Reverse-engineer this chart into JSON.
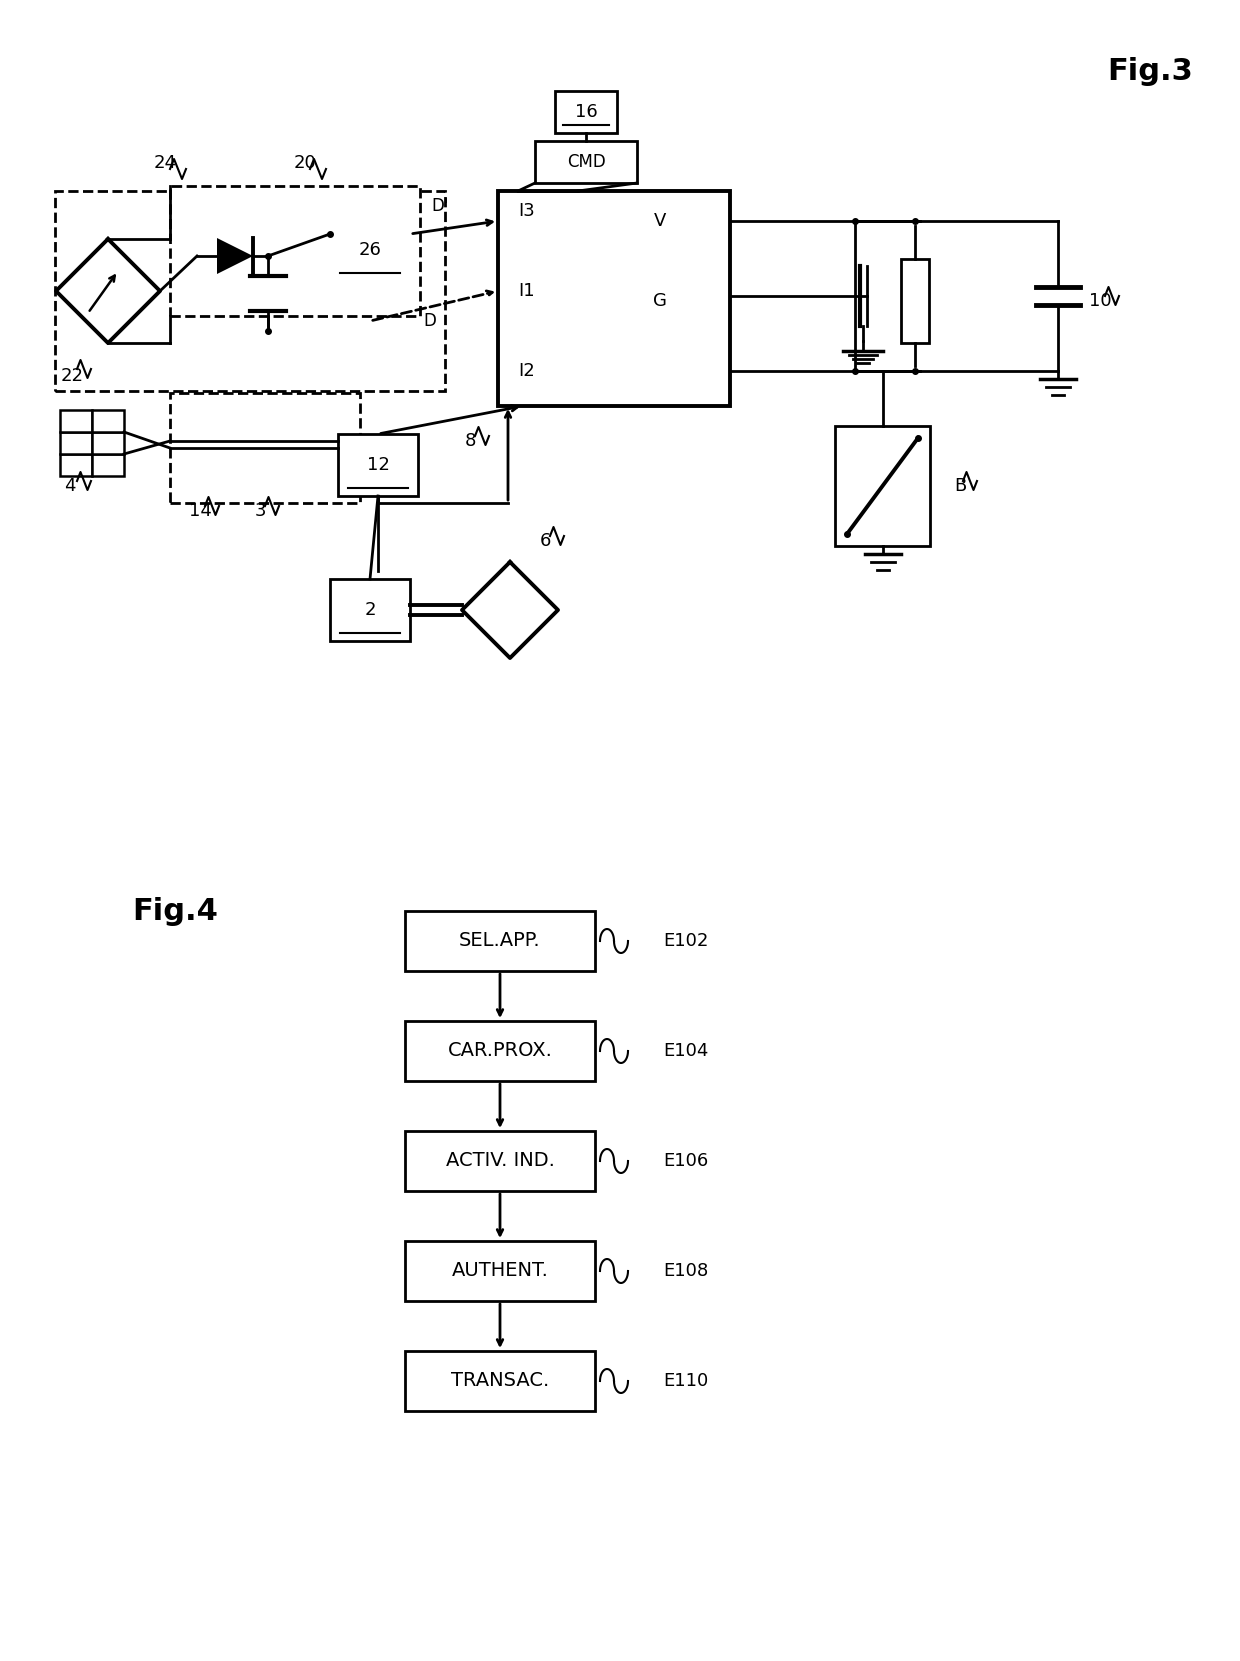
{
  "fig_width": 12.4,
  "fig_height": 16.61,
  "bg_color": "#ffffff",
  "line_color": "#000000",
  "fig3_label": "Fig.3",
  "fig4_label": "Fig.4",
  "flow_steps": [
    {
      "label": "SEL.APP.",
      "tag": "E102"
    },
    {
      "label": "CAR.PROX.",
      "tag": "E104"
    },
    {
      "label": "ACTIV. IND.",
      "tag": "E106"
    },
    {
      "label": "AUTHENT.",
      "tag": "E108"
    },
    {
      "label": "TRANSAC.",
      "tag": "E110"
    }
  ]
}
